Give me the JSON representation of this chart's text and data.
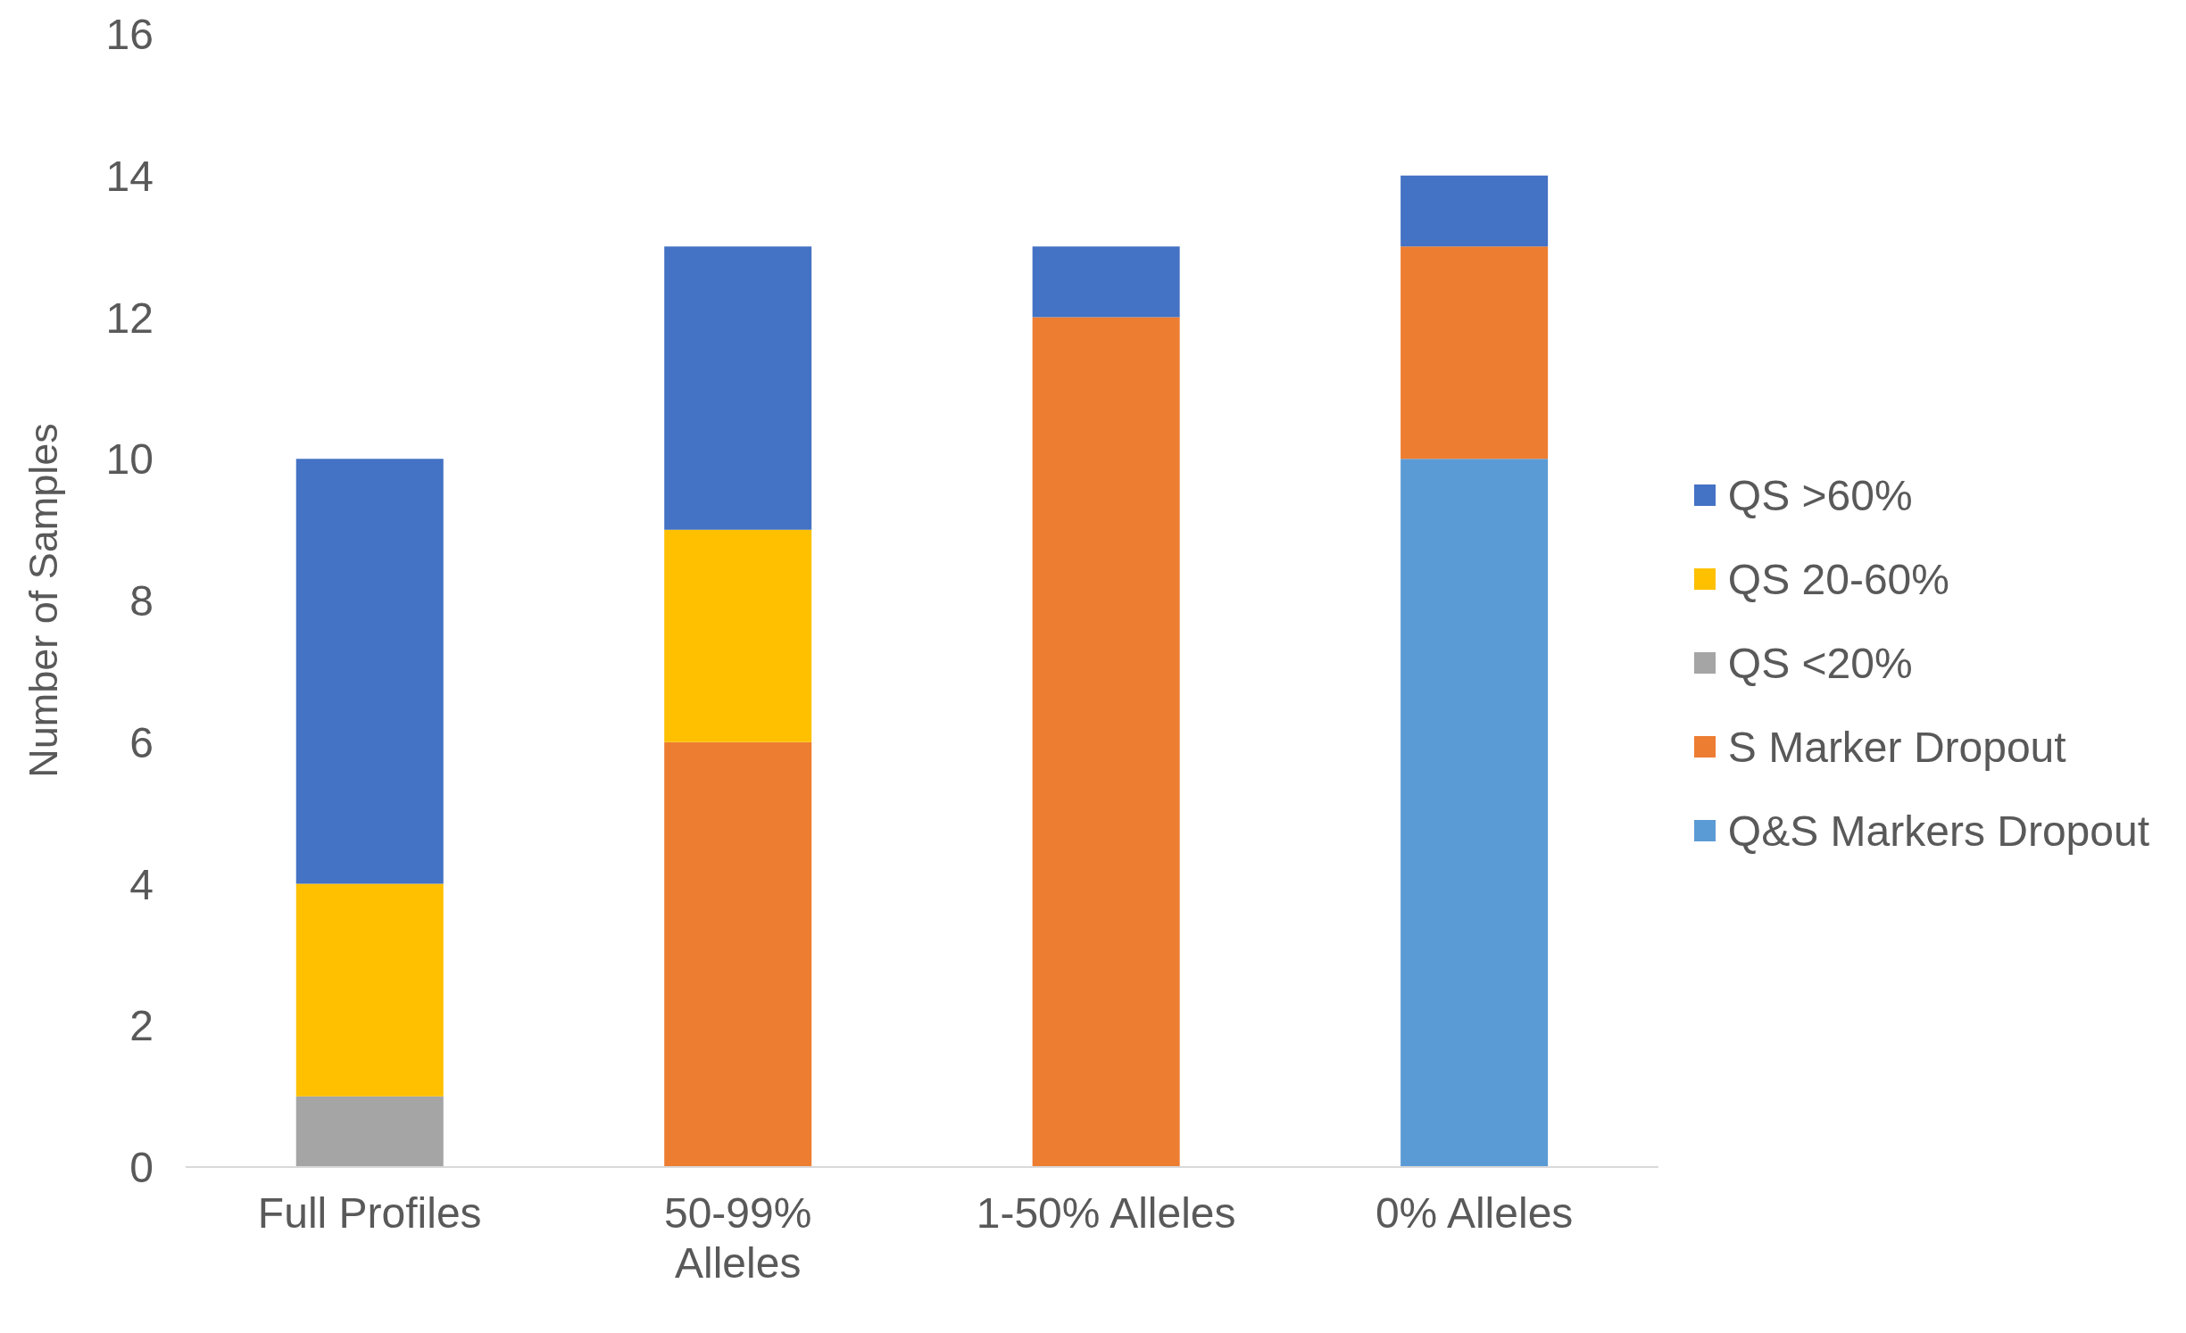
{
  "chart_data": {
    "type": "bar",
    "stacked": true,
    "ylabel": "Number of Samples",
    "categories": [
      "Full Profiles",
      "50-99% Alleles",
      "1-50% Alleles",
      "0% Alleles"
    ],
    "series": [
      {
        "name": "Q&S Markers Dropout",
        "color": "#5b9bd5",
        "values": [
          null,
          null,
          null,
          10
        ]
      },
      {
        "name": "S Marker Dropout",
        "color": "#ed7d31",
        "values": [
          null,
          6,
          12,
          3
        ]
      },
      {
        "name": "QS <20%",
        "color": "#a5a5a5",
        "values": [
          1,
          null,
          null,
          null
        ]
      },
      {
        "name": "QS 20-60%",
        "color": "#ffc000",
        "values": [
          3,
          3,
          null,
          null
        ]
      },
      {
        "name": "QS >60%",
        "color": "#4472c4",
        "values": [
          6,
          4,
          1,
          1
        ]
      }
    ],
    "ylim": [
      0,
      16
    ],
    "yticks": [
      0,
      2,
      4,
      6,
      8,
      10,
      12,
      14,
      16
    ],
    "grid": false,
    "legend": "right"
  }
}
